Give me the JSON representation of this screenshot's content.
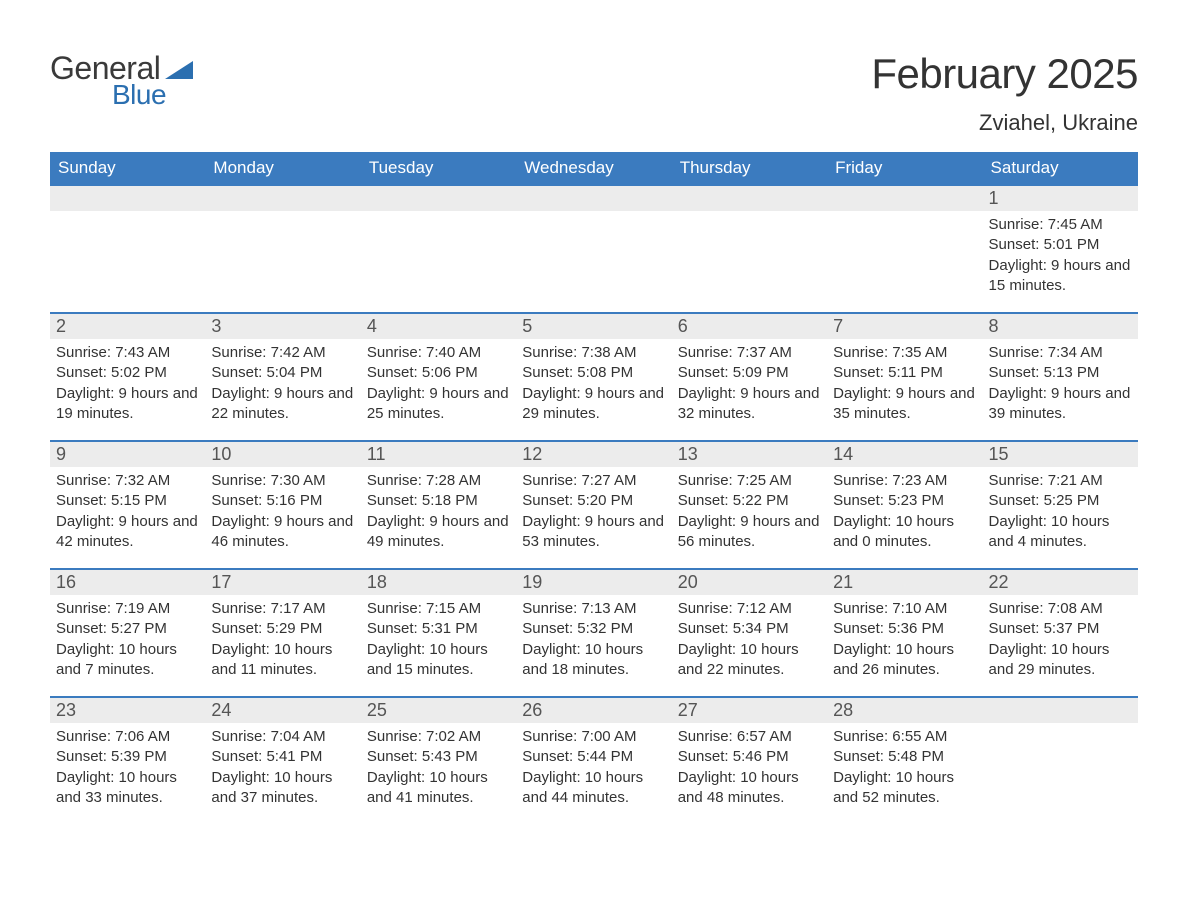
{
  "logo": {
    "text_general": "General",
    "text_blue": "Blue",
    "shape_color": "#2b6fb0"
  },
  "title": "February 2025",
  "location": "Zviahel, Ukraine",
  "colors": {
    "header_bg": "#3b7bbf",
    "header_text": "#ffffff",
    "row_separator": "#3b7bbf",
    "daynum_bg": "#ececec",
    "body_text": "#333333",
    "page_bg": "#ffffff"
  },
  "fonts": {
    "title_size_pt": 32,
    "location_size_pt": 17,
    "header_size_pt": 13,
    "daynum_size_pt": 14,
    "body_size_pt": 11
  },
  "day_headers": [
    "Sunday",
    "Monday",
    "Tuesday",
    "Wednesday",
    "Thursday",
    "Friday",
    "Saturday"
  ],
  "weeks": [
    [
      null,
      null,
      null,
      null,
      null,
      null,
      {
        "d": "1",
        "sr": "7:45 AM",
        "ss": "5:01 PM",
        "dl": "9 hours and 15 minutes."
      }
    ],
    [
      {
        "d": "2",
        "sr": "7:43 AM",
        "ss": "5:02 PM",
        "dl": "9 hours and 19 minutes."
      },
      {
        "d": "3",
        "sr": "7:42 AM",
        "ss": "5:04 PM",
        "dl": "9 hours and 22 minutes."
      },
      {
        "d": "4",
        "sr": "7:40 AM",
        "ss": "5:06 PM",
        "dl": "9 hours and 25 minutes."
      },
      {
        "d": "5",
        "sr": "7:38 AM",
        "ss": "5:08 PM",
        "dl": "9 hours and 29 minutes."
      },
      {
        "d": "6",
        "sr": "7:37 AM",
        "ss": "5:09 PM",
        "dl": "9 hours and 32 minutes."
      },
      {
        "d": "7",
        "sr": "7:35 AM",
        "ss": "5:11 PM",
        "dl": "9 hours and 35 minutes."
      },
      {
        "d": "8",
        "sr": "7:34 AM",
        "ss": "5:13 PM",
        "dl": "9 hours and 39 minutes."
      }
    ],
    [
      {
        "d": "9",
        "sr": "7:32 AM",
        "ss": "5:15 PM",
        "dl": "9 hours and 42 minutes."
      },
      {
        "d": "10",
        "sr": "7:30 AM",
        "ss": "5:16 PM",
        "dl": "9 hours and 46 minutes."
      },
      {
        "d": "11",
        "sr": "7:28 AM",
        "ss": "5:18 PM",
        "dl": "9 hours and 49 minutes."
      },
      {
        "d": "12",
        "sr": "7:27 AM",
        "ss": "5:20 PM",
        "dl": "9 hours and 53 minutes."
      },
      {
        "d": "13",
        "sr": "7:25 AM",
        "ss": "5:22 PM",
        "dl": "9 hours and 56 minutes."
      },
      {
        "d": "14",
        "sr": "7:23 AM",
        "ss": "5:23 PM",
        "dl": "10 hours and 0 minutes."
      },
      {
        "d": "15",
        "sr": "7:21 AM",
        "ss": "5:25 PM",
        "dl": "10 hours and 4 minutes."
      }
    ],
    [
      {
        "d": "16",
        "sr": "7:19 AM",
        "ss": "5:27 PM",
        "dl": "10 hours and 7 minutes."
      },
      {
        "d": "17",
        "sr": "7:17 AM",
        "ss": "5:29 PM",
        "dl": "10 hours and 11 minutes."
      },
      {
        "d": "18",
        "sr": "7:15 AM",
        "ss": "5:31 PM",
        "dl": "10 hours and 15 minutes."
      },
      {
        "d": "19",
        "sr": "7:13 AM",
        "ss": "5:32 PM",
        "dl": "10 hours and 18 minutes."
      },
      {
        "d": "20",
        "sr": "7:12 AM",
        "ss": "5:34 PM",
        "dl": "10 hours and 22 minutes."
      },
      {
        "d": "21",
        "sr": "7:10 AM",
        "ss": "5:36 PM",
        "dl": "10 hours and 26 minutes."
      },
      {
        "d": "22",
        "sr": "7:08 AM",
        "ss": "5:37 PM",
        "dl": "10 hours and 29 minutes."
      }
    ],
    [
      {
        "d": "23",
        "sr": "7:06 AM",
        "ss": "5:39 PM",
        "dl": "10 hours and 33 minutes."
      },
      {
        "d": "24",
        "sr": "7:04 AM",
        "ss": "5:41 PM",
        "dl": "10 hours and 37 minutes."
      },
      {
        "d": "25",
        "sr": "7:02 AM",
        "ss": "5:43 PM",
        "dl": "10 hours and 41 minutes."
      },
      {
        "d": "26",
        "sr": "7:00 AM",
        "ss": "5:44 PM",
        "dl": "10 hours and 44 minutes."
      },
      {
        "d": "27",
        "sr": "6:57 AM",
        "ss": "5:46 PM",
        "dl": "10 hours and 48 minutes."
      },
      {
        "d": "28",
        "sr": "6:55 AM",
        "ss": "5:48 PM",
        "dl": "10 hours and 52 minutes."
      },
      null
    ]
  ],
  "labels": {
    "sunrise": "Sunrise: ",
    "sunset": "Sunset: ",
    "daylight": "Daylight: "
  }
}
